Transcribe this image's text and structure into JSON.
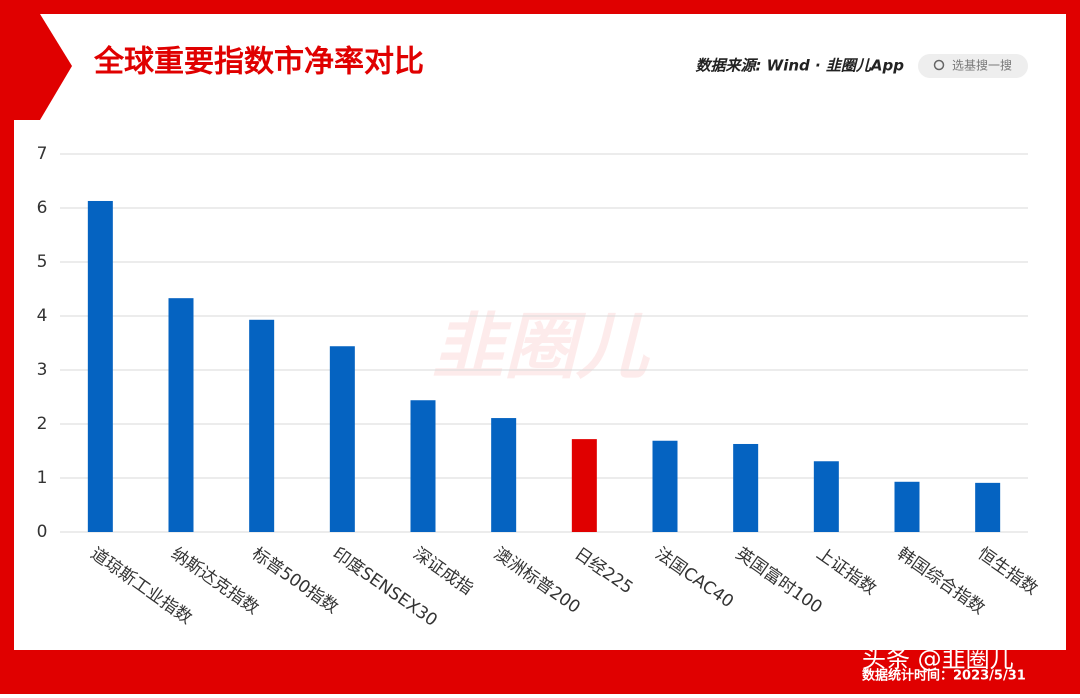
{
  "chart_data": {
    "type": "bar",
    "title": "全球重要指数市净率对比",
    "source": "数据来源: Wind · 韭圈儿App",
    "search_placeholder": "选基搜一搜",
    "watermark": "韭圈儿",
    "footer": "数据统计时间：2023/5/31",
    "attribution": "头条 @韭圈儿",
    "categories": [
      "道琼斯工业指数",
      "纳斯达克指数",
      "标普500指数",
      "印度SENSEX30",
      "深证成指",
      "澳洲标普200",
      "日经225",
      "法国CAC40",
      "英国富时100",
      "上证指数",
      "韩国综合指数",
      "恒生指数"
    ],
    "values": [
      6.13,
      4.33,
      3.93,
      3.44,
      2.44,
      2.11,
      1.72,
      1.69,
      1.63,
      1.31,
      0.93,
      0.91
    ],
    "colors": [
      "#0563c1",
      "#0563c1",
      "#0563c1",
      "#0563c1",
      "#0563c1",
      "#0563c1",
      "#e00000",
      "#0563c1",
      "#0563c1",
      "#0563c1",
      "#0563c1",
      "#0563c1"
    ],
    "ylim": [
      0,
      7
    ],
    "yticks": [
      0,
      1,
      2,
      3,
      4,
      5,
      6,
      7
    ],
    "grid": true
  }
}
